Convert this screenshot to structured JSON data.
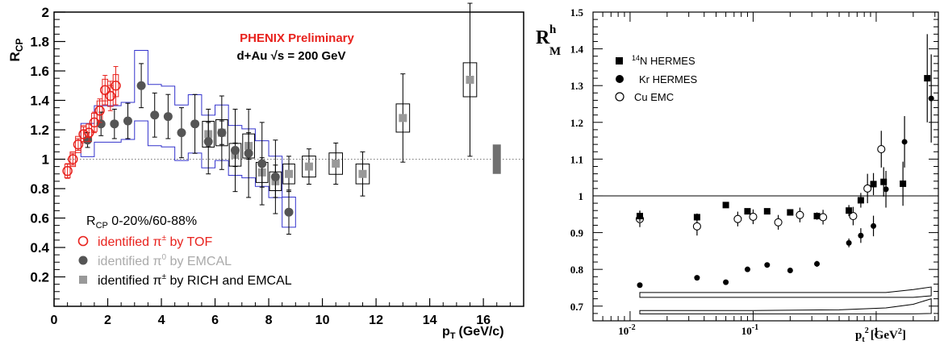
{
  "chart_data": [
    {
      "type": "scatter",
      "title": "PHENIX Preliminary",
      "subtitle": "d+Au √s = 200 GeV",
      "xlabel": "p",
      "xlabel_sub": "T",
      "xlabel_unit": "(GeV/c)",
      "ylabel": "R",
      "ylabel_sub": "CP",
      "xlim": [
        0,
        17.5
      ],
      "ylim": [
        0,
        2
      ],
      "x_ticks": [
        "0",
        "2",
        "4",
        "6",
        "8",
        "10",
        "12",
        "14",
        "16"
      ],
      "y_ticks": [
        "0.2",
        "0.4",
        "0.6",
        "0.8",
        "1",
        "1.2",
        "1.4",
        "1.6",
        "1.8",
        "2"
      ],
      "reference_line": 1,
      "legend_placement": "bottom-left",
      "legend_header": {
        "main": "R",
        "sub": "CP",
        "rest": " 0-20%/60-88%"
      },
      "colors": {
        "tof": "#e8221d",
        "emcal": "#555555",
        "emcal_text": "#aaaaaa",
        "rich": "#999999",
        "emcal_band": "#3333cc",
        "norm_box": "#707070"
      },
      "series": [
        {
          "name": "identified π± by TOF",
          "label_text": "identified π",
          "label_sup": "±",
          "label_rest": " by TOF",
          "marker": "open-circle",
          "x": [
            0.5,
            0.7,
            0.9,
            1.1,
            1.3,
            1.5,
            1.7,
            1.9,
            2.1,
            2.3
          ],
          "y": [
            0.92,
            1.0,
            1.1,
            1.17,
            1.18,
            1.25,
            1.33,
            1.47,
            1.43,
            1.5
          ],
          "err": [
            0.05,
            0.04,
            0.04,
            0.05,
            0.06,
            0.07,
            0.08,
            0.1,
            0.1,
            0.13
          ]
        },
        {
          "name": "identified π0 by EMCAL",
          "label_text": "identified π",
          "label_sup": "0",
          "label_rest": " by EMCAL",
          "marker": "filled-circle",
          "x": [
            1.25,
            1.75,
            2.25,
            2.75,
            3.25,
            3.75,
            4.25,
            4.75,
            5.25,
            5.75,
            6.25,
            6.75,
            7.25,
            7.75,
            8.25,
            8.75
          ],
          "y": [
            1.13,
            1.24,
            1.24,
            1.26,
            1.5,
            1.3,
            1.29,
            1.18,
            1.24,
            1.12,
            1.18,
            1.06,
            1.04,
            0.97,
            0.88,
            0.64
          ],
          "err": [
            0.05,
            0.08,
            0.1,
            0.12,
            0.15,
            0.15,
            0.15,
            0.17,
            0.2,
            0.22,
            0.25,
            0.28,
            0.3,
            0.28,
            0.25,
            0.15
          ]
        },
        {
          "name": "identified π± by RICH and EMCAL",
          "label_text": "identified π",
          "label_sup": "±",
          "label_rest": " by RICH and EMCAL",
          "marker": "filled-square",
          "x": [
            5.75,
            6.25,
            6.75,
            7.25,
            7.75,
            8.25,
            8.75,
            9.5,
            10.5,
            11.5,
            13.0,
            15.5
          ],
          "y": [
            1.17,
            1.18,
            1.03,
            1.09,
            0.91,
            0.85,
            0.9,
            0.95,
            0.97,
            0.9,
            1.28,
            1.54
          ],
          "err": [
            0.08,
            0.08,
            0.08,
            0.09,
            0.1,
            0.11,
            0.12,
            0.12,
            0.14,
            0.15,
            0.3,
            0.52
          ]
        }
      ]
    },
    {
      "type": "scatter",
      "xlabel": "p",
      "xlabel_sub": "t",
      "xlabel_sup": "2",
      "xlabel_unit": "[GeV",
      "xlabel_unit_sup": "2",
      "xlabel_unit_end": "]",
      "ylabel": "R",
      "ylabel_sub": "M",
      "ylabel_sup": "h",
      "x_scale": "log",
      "xlim": [
        0.005,
        3.2
      ],
      "ylim": [
        0.66,
        1.5
      ],
      "y_ticks": [
        "0.7",
        "0.8",
        "0.9",
        "1",
        "1.1",
        "1.2",
        "1.3",
        "1.4",
        "1.5"
      ],
      "x_tick_labels": [
        {
          "base": "10",
          "exp": "-2"
        },
        {
          "base": "10",
          "exp": "-1"
        },
        {
          "base": "1",
          "exp": ""
        }
      ],
      "reference_line": 1,
      "legend_placement": "top-left",
      "series": [
        {
          "name": "14N HERMES",
          "label_sup": "14",
          "label_rest": "N  HERMES",
          "marker": "filled-square",
          "x": [
            0.012,
            0.035,
            0.06,
            0.09,
            0.13,
            0.2,
            0.33,
            0.6,
            0.75,
            0.95,
            1.15,
            1.65,
            2.6
          ],
          "y": [
            0.945,
            0.942,
            0.975,
            0.958,
            0.958,
            0.955,
            0.945,
            0.96,
            0.988,
            1.032,
            1.038,
            1.033,
            1.32
          ],
          "err": [
            0.015,
            0.01,
            0.008,
            0.008,
            0.008,
            0.008,
            0.01,
            0.015,
            0.02,
            0.03,
            0.04,
            0.06,
            0.12
          ]
        },
        {
          "name": "Kr HERMES",
          "label_rest": "Kr  HERMES",
          "marker": "filled-circle",
          "x": [
            0.012,
            0.035,
            0.06,
            0.09,
            0.13,
            0.2,
            0.33,
            0.6,
            0.75,
            0.95,
            1.2,
            1.7,
            2.8
          ],
          "y": [
            0.757,
            0.777,
            0.765,
            0.8,
            0.812,
            0.797,
            0.815,
            0.872,
            0.892,
            0.918,
            1.018,
            1.147,
            1.265
          ],
          "err": [
            0.005,
            0.005,
            0.005,
            0.006,
            0.006,
            0.006,
            0.008,
            0.012,
            0.02,
            0.028,
            0.05,
            0.07,
            0.12
          ]
        },
        {
          "name": "Cu EMC",
          "label_rest": "Cu  EMC",
          "marker": "open-circle",
          "x": [
            0.012,
            0.035,
            0.075,
            0.1,
            0.16,
            0.24,
            0.37,
            0.65,
            0.85,
            1.1
          ],
          "y": [
            0.937,
            0.917,
            0.937,
            0.943,
            0.928,
            0.948,
            0.942,
            0.945,
            1.02,
            1.127
          ],
          "err": [
            0.022,
            0.025,
            0.02,
            0.02,
            0.02,
            0.02,
            0.02,
            0.025,
            0.04,
            0.05
          ]
        }
      ]
    }
  ]
}
